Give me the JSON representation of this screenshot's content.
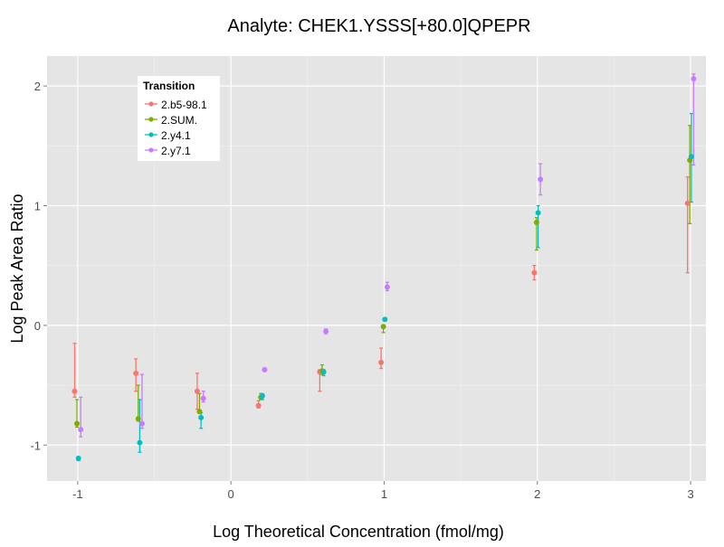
{
  "chart_data": {
    "type": "scatter",
    "title": "Analyte: CHEK1.YSSS[+80.0]QPEPR",
    "xlabel": "Log Theoretical Concentration (fmol/mg)",
    "ylabel": "Log Peak Area Ratio",
    "xlim": [
      -1.2,
      3.1
    ],
    "ylim": [
      -1.3,
      2.25
    ],
    "x_ticks": [
      -1,
      0,
      1,
      2,
      3
    ],
    "x_tick_labels": [
      "-1",
      "0",
      "1",
      "2",
      "3"
    ],
    "y_ticks": [
      -1,
      0,
      1,
      2
    ],
    "y_tick_labels": [
      "-1",
      "0",
      "1",
      "2"
    ],
    "grid": true,
    "legend": {
      "title": "Transition",
      "placement": "top-left"
    },
    "series": [
      {
        "name": "2.b5-98.1",
        "color": "#F8766D",
        "points": [
          {
            "x": -1,
            "y": -0.55,
            "lo": -0.6,
            "hi": -0.15
          },
          {
            "x": -0.6,
            "y": -0.4,
            "lo": -0.55,
            "hi": -0.28
          },
          {
            "x": -0.2,
            "y": -0.55,
            "lo": -0.7,
            "hi": -0.4
          },
          {
            "x": 0.2,
            "y": -0.67,
            "lo": -0.69,
            "hi": -0.63
          },
          {
            "x": 0.6,
            "y": -0.39,
            "lo": -0.55,
            "hi": -0.37
          },
          {
            "x": 1,
            "y": -0.31,
            "lo": -0.36,
            "hi": -0.19
          },
          {
            "x": 2,
            "y": 0.44,
            "lo": 0.38,
            "hi": 0.5
          },
          {
            "x": 3,
            "y": 1.02,
            "lo": 0.44,
            "hi": 1.24
          }
        ]
      },
      {
        "name": "2.SUM.",
        "color": "#7CAE00",
        "points": [
          {
            "x": -1,
            "y": -0.82,
            "lo": -0.85,
            "hi": -0.62
          },
          {
            "x": -0.6,
            "y": -0.78,
            "lo": -0.8,
            "hi": -0.5
          },
          {
            "x": -0.2,
            "y": -0.72,
            "lo": -0.73,
            "hi": -0.57
          },
          {
            "x": 0.2,
            "y": -0.6,
            "lo": -0.62,
            "hi": -0.57
          },
          {
            "x": 0.6,
            "y": -0.38,
            "lo": -0.41,
            "hi": -0.33
          },
          {
            "x": 1,
            "y": -0.01,
            "lo": -0.06,
            "hi": 0.0
          },
          {
            "x": 2,
            "y": 0.86,
            "lo": 0.63,
            "hi": 0.9
          },
          {
            "x": 3,
            "y": 1.38,
            "lo": 0.85,
            "hi": 1.67
          }
        ]
      },
      {
        "name": "2.y4.1",
        "color": "#00BFC4",
        "points": [
          {
            "x": -1,
            "y": -1.11,
            "lo": -1.13,
            "hi": -1.1
          },
          {
            "x": -0.6,
            "y": -0.98,
            "lo": -1.06,
            "hi": -0.62
          },
          {
            "x": -0.2,
            "y": -0.77,
            "lo": -0.86,
            "hi": -0.73
          },
          {
            "x": 0.2,
            "y": -0.59,
            "lo": -0.62,
            "hi": -0.57
          },
          {
            "x": 0.6,
            "y": -0.39,
            "lo": -0.42,
            "hi": -0.37
          },
          {
            "x": 1,
            "y": 0.05,
            "lo": 0.04,
            "hi": 0.06
          },
          {
            "x": 2,
            "y": 0.94,
            "lo": 0.65,
            "hi": 1.0
          },
          {
            "x": 3,
            "y": 1.41,
            "lo": 1.03,
            "hi": 1.77
          }
        ]
      },
      {
        "name": "2.y7.1",
        "color": "#C77CFF",
        "points": [
          {
            "x": -1,
            "y": -0.87,
            "lo": -0.93,
            "hi": -0.6
          },
          {
            "x": -0.6,
            "y": -0.82,
            "lo": -0.86,
            "hi": -0.41
          },
          {
            "x": -0.2,
            "y": -0.61,
            "lo": -0.64,
            "hi": -0.55
          },
          {
            "x": 0.2,
            "y": -0.37,
            "lo": -0.38,
            "hi": -0.36
          },
          {
            "x": 0.6,
            "y": -0.05,
            "lo": -0.07,
            "hi": -0.03
          },
          {
            "x": 1,
            "y": 0.32,
            "lo": 0.29,
            "hi": 0.36
          },
          {
            "x": 2,
            "y": 1.22,
            "lo": 1.09,
            "hi": 1.35
          },
          {
            "x": 3,
            "y": 2.06,
            "lo": 1.34,
            "hi": 2.1
          }
        ]
      }
    ],
    "jitter": [
      -0.02,
      -0.005,
      0.005,
      0.02
    ]
  }
}
